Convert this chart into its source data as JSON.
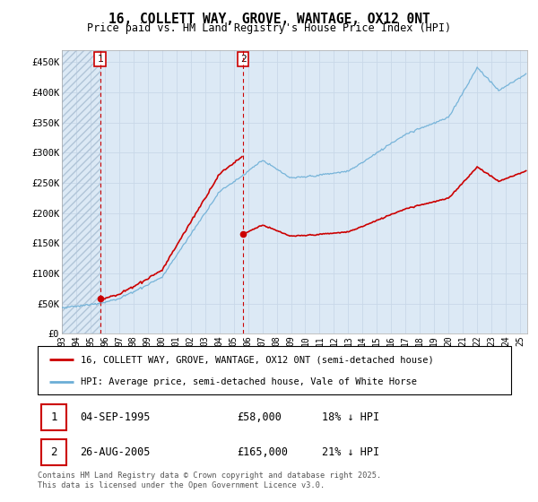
{
  "title": "16, COLLETT WAY, GROVE, WANTAGE, OX12 0NT",
  "subtitle": "Price paid vs. HM Land Registry's House Price Index (HPI)",
  "ylim": [
    0,
    470000
  ],
  "xlim_start": 1993.0,
  "xlim_end": 2025.5,
  "yticks": [
    0,
    50000,
    100000,
    150000,
    200000,
    250000,
    300000,
    350000,
    400000,
    450000
  ],
  "ytick_labels": [
    "£0",
    "£50K",
    "£100K",
    "£150K",
    "£200K",
    "£250K",
    "£300K",
    "£350K",
    "£400K",
    "£450K"
  ],
  "xtick_years": [
    1993,
    1994,
    1995,
    1996,
    1997,
    1998,
    1999,
    2000,
    2001,
    2002,
    2003,
    2004,
    2005,
    2006,
    2007,
    2008,
    2009,
    2010,
    2011,
    2012,
    2013,
    2014,
    2015,
    2016,
    2017,
    2018,
    2019,
    2020,
    2021,
    2022,
    2023,
    2024,
    2025
  ],
  "xtick_labels": [
    "93",
    "94",
    "95",
    "96",
    "97",
    "98",
    "99",
    "00",
    "01",
    "02",
    "03",
    "04",
    "05",
    "06",
    "07",
    "08",
    "09",
    "10",
    "11",
    "12",
    "13",
    "14",
    "15",
    "16",
    "17",
    "18",
    "19",
    "20",
    "21",
    "22",
    "23",
    "24",
    "25"
  ],
  "sale1_year": 1995.67,
  "sale1_price": 58000,
  "sale2_year": 2005.65,
  "sale2_price": 165000,
  "hpi_color": "#6baed6",
  "price_color": "#cc0000",
  "annotation1_label": "1",
  "annotation2_label": "2",
  "legend_label1": "16, COLLETT WAY, GROVE, WANTAGE, OX12 0NT (semi-detached house)",
  "legend_label2": "HPI: Average price, semi-detached house, Vale of White Horse",
  "table_row1": [
    "1",
    "04-SEP-1995",
    "£58,000",
    "18% ↓ HPI"
  ],
  "table_row2": [
    "2",
    "26-AUG-2005",
    "£165,000",
    "21% ↓ HPI"
  ],
  "footnote": "Contains HM Land Registry data © Crown copyright and database right 2025.\nThis data is licensed under the Open Government Licence v3.0.",
  "grid_color": "#c8d8e8",
  "plot_bg": "#dce9f5",
  "hatch_color": "#b0c4d8",
  "white": "#ffffff"
}
